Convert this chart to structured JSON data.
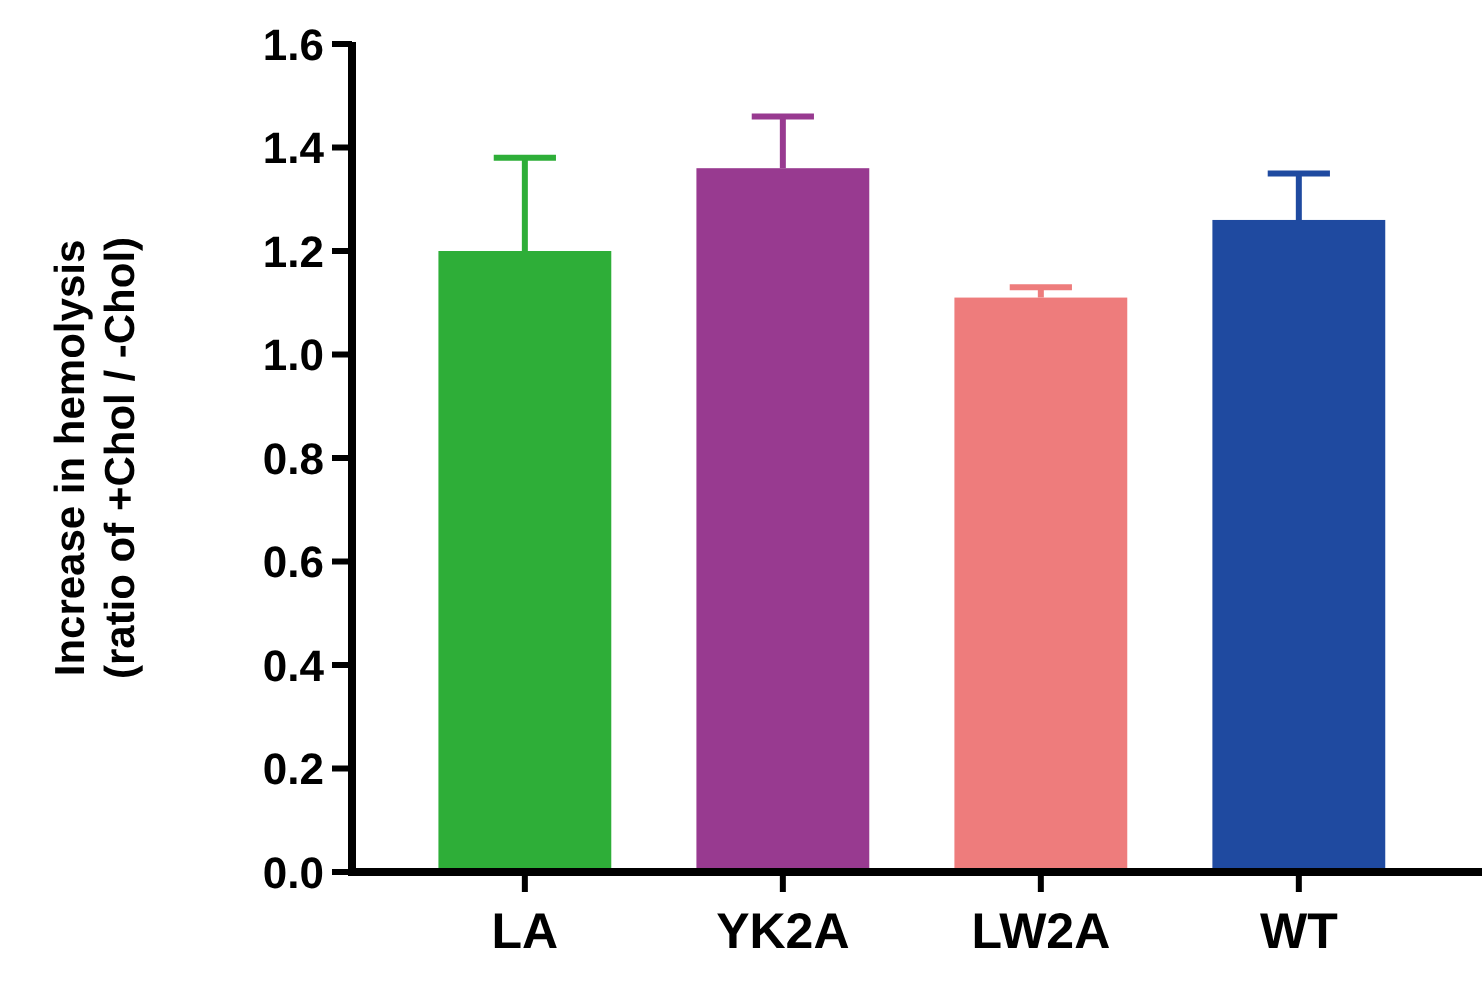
{
  "chart_data": {
    "type": "bar",
    "ylabel": "Increase in hemolysis\n(ratio of +Chol / -Chol)",
    "categories": [
      "LA",
      "YK2A",
      "LW2A",
      "WT"
    ],
    "values": [
      1.2,
      1.36,
      1.11,
      1.26
    ],
    "colors": [
      "#2eae38",
      "#983a90",
      "#ee7c7c",
      "#1f4aa0"
    ],
    "errors": [
      [
        1.2,
        1.38
      ],
      [
        1.36,
        1.46
      ],
      [
        1.11,
        1.13
      ],
      [
        1.26,
        1.35
      ]
    ],
    "ylim": [
      0,
      1.6
    ],
    "yticks": [
      {
        "value": 0,
        "label": "0.0"
      },
      {
        "value": 0.2,
        "label": "0.2"
      },
      {
        "value": 0.4,
        "label": "0.4"
      },
      {
        "value": 0.6,
        "label": "0.6"
      },
      {
        "value": 0.8,
        "label": "0.8"
      },
      {
        "value": 1,
        "label": "1.0"
      },
      {
        "value": 1.2,
        "label": "1.2"
      },
      {
        "value": 1.4,
        "label": "1.4"
      },
      {
        "value": 1.6,
        "label": "1.6"
      }
    ]
  }
}
